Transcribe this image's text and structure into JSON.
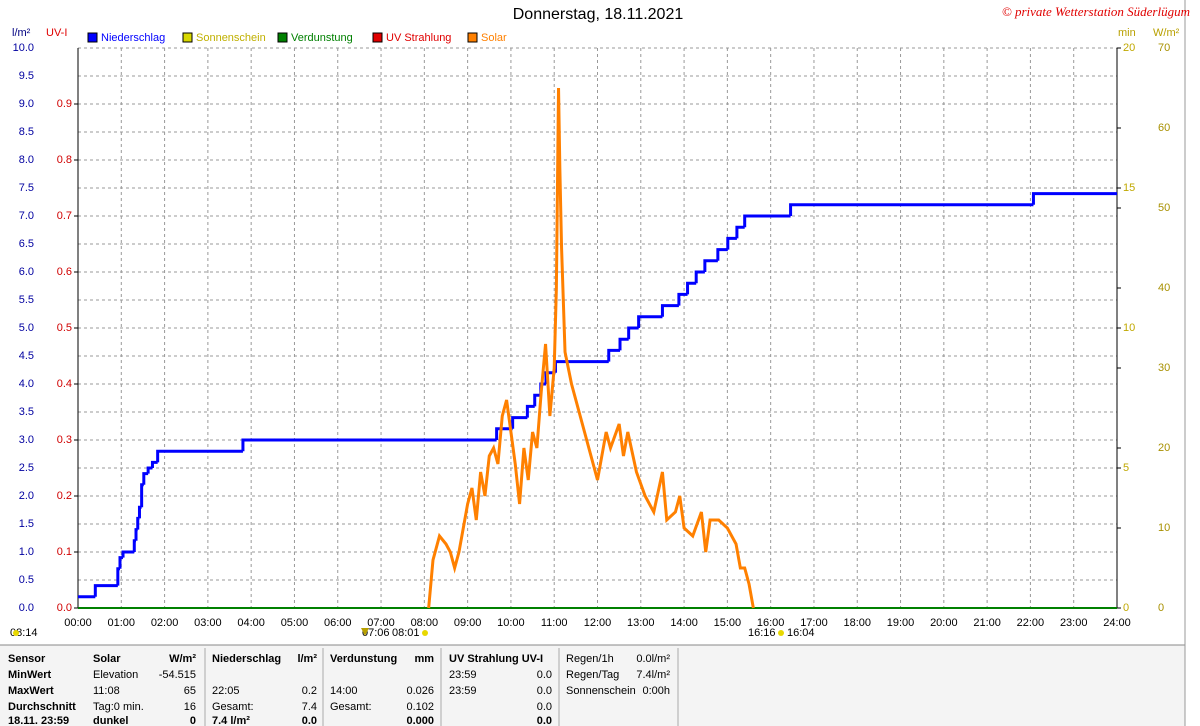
{
  "chart_data": {
    "type": "line",
    "title": "Donnerstag, 18.11.2021",
    "copyright": "© private Wetterstation Süderlügum",
    "ylabel": "l/m²",
    "y3label": "UV-I",
    "y4label": "min",
    "y2label": "W/m²",
    "xlim": [
      0,
      24
    ],
    "xticks": [
      {
        "value": 0,
        "label": "00:00"
      },
      {
        "value": 1,
        "label": "01:00"
      },
      {
        "value": 2,
        "label": "02:00"
      },
      {
        "value": 3,
        "label": "03:00"
      },
      {
        "value": 4,
        "label": "04:00"
      },
      {
        "value": 5,
        "label": "05:00"
      },
      {
        "value": 6,
        "label": "06:00"
      },
      {
        "value": 7,
        "label": "07:00"
      },
      {
        "value": 8,
        "label": "08:00"
      },
      {
        "value": 9,
        "label": "09:00"
      },
      {
        "value": 10,
        "label": "10:00"
      },
      {
        "value": 11,
        "label": "11:00"
      },
      {
        "value": 12,
        "label": "12:00"
      },
      {
        "value": 13,
        "label": "13:00"
      },
      {
        "value": 14,
        "label": "14:00"
      },
      {
        "value": 15,
        "label": "15:00"
      },
      {
        "value": 16,
        "label": "16:00"
      },
      {
        "value": 17,
        "label": "17:00"
      },
      {
        "value": 18,
        "label": "18:00"
      },
      {
        "value": 19,
        "label": "19:00"
      },
      {
        "value": 20,
        "label": "20:00"
      },
      {
        "value": 21,
        "label": "21:00"
      },
      {
        "value": 22,
        "label": "22:00"
      },
      {
        "value": 23,
        "label": "23:00"
      },
      {
        "value": 24,
        "label": "24:00"
      }
    ],
    "ylim": [
      0,
      10
    ],
    "yticks": [
      {
        "value": 0,
        "label": "0.0"
      },
      0.5,
      {
        "value": 1,
        "label": "1.0"
      },
      1.5,
      {
        "value": 2,
        "label": "2.0"
      },
      2.5,
      {
        "value": 3,
        "label": "3.0"
      },
      3.5,
      {
        "value": 4,
        "label": "4.0"
      },
      4.5,
      {
        "value": 5,
        "label": "5.0"
      },
      5.5,
      {
        "value": 6,
        "label": "6.0"
      },
      6.5,
      {
        "value": 7,
        "label": "7.0"
      },
      7.5,
      {
        "value": 8,
        "label": "8.0"
      },
      8.5,
      {
        "value": 9,
        "label": "9.0"
      },
      9.5,
      {
        "value": 10,
        "label": "10.0"
      }
    ],
    "y3lim": [
      0,
      1
    ],
    "y3ticks": [
      {
        "value": 0,
        "label": "0.0"
      },
      0.1,
      0.2,
      0.3,
      0.4,
      0.5,
      0.6,
      0.7,
      0.8,
      0.9
    ],
    "y4lim": [
      0,
      20
    ],
    "y4ticks": [
      0,
      5,
      10,
      15,
      20
    ],
    "y2lim": [
      0,
      70
    ],
    "y2ticks": [
      0,
      10,
      20,
      30,
      40,
      50,
      60,
      70
    ],
    "grid": true,
    "series": [
      {
        "name": "Niederschlag",
        "color": "#0000ff",
        "axis": "y",
        "step": true,
        "x": [
          0,
          0.4,
          0.92,
          0.97,
          1.04,
          1.3,
          1.34,
          1.38,
          1.42,
          1.47,
          1.52,
          1.62,
          1.72,
          1.84,
          3.81,
          9.67,
          10.04,
          10.38,
          10.55,
          10.69,
          10.81,
          11.03,
          12.26,
          12.52,
          12.72,
          12.95,
          13.5,
          13.88,
          14.08,
          14.28,
          14.48,
          14.78,
          15.01,
          15.22,
          15.4,
          16.46,
          22.07,
          24
        ],
        "values": [
          0.2,
          0.4,
          0.7,
          0.9,
          1.0,
          1.2,
          1.4,
          1.6,
          1.8,
          2.2,
          2.4,
          2.5,
          2.6,
          2.8,
          3.0,
          3.2,
          3.4,
          3.6,
          3.8,
          4.0,
          4.2,
          4.4,
          4.6,
          4.8,
          5.0,
          5.2,
          5.4,
          5.6,
          5.8,
          6.0,
          6.2,
          6.4,
          6.6,
          6.8,
          7.0,
          7.2,
          7.4,
          7.4
        ]
      },
      {
        "name": "Sonnenschein",
        "color": "#d8d800",
        "axis": "y4",
        "x": [],
        "values": []
      },
      {
        "name": "Verdunstung",
        "color": "#008000",
        "axis": "y",
        "x": [
          0,
          24
        ],
        "values": [
          0,
          0
        ]
      },
      {
        "name": "UV Strahlung",
        "color": "#e00000",
        "axis": "y3",
        "x": [],
        "values": []
      },
      {
        "name": "Solar",
        "color": "#ff8000",
        "axis": "y2",
        "x": [
          8.1,
          8.2,
          8.35,
          8.5,
          8.6,
          8.7,
          8.8,
          9.0,
          9.1,
          9.2,
          9.3,
          9.4,
          9.5,
          9.6,
          9.7,
          9.8,
          9.9,
          10.0,
          10.1,
          10.2,
          10.3,
          10.4,
          10.5,
          10.6,
          10.7,
          10.8,
          10.9,
          11.0,
          11.05,
          11.1,
          11.13,
          11.17,
          11.25,
          11.4,
          11.5,
          11.7,
          11.9,
          12.0,
          12.2,
          12.3,
          12.5,
          12.6,
          12.7,
          12.9,
          13.1,
          13.3,
          13.5,
          13.6,
          13.8,
          13.9,
          14.0,
          14.2,
          14.4,
          14.5,
          14.6,
          14.8,
          15.0,
          15.2,
          15.3,
          15.4,
          15.5,
          15.6
        ],
        "values": [
          0,
          6,
          9,
          8,
          7,
          5,
          7,
          13,
          15,
          11,
          17,
          14,
          19,
          20,
          18,
          24,
          26,
          22,
          18,
          13,
          20,
          16,
          22,
          20,
          27,
          33,
          24,
          30,
          40,
          65,
          55,
          45,
          32,
          28,
          26,
          22,
          18,
          16,
          22,
          20,
          23,
          19,
          22,
          17,
          14,
          12,
          17,
          11,
          12,
          14,
          10,
          9,
          12,
          7,
          11,
          11,
          10,
          8,
          5,
          5,
          3,
          0
        ]
      }
    ],
    "annotations": [
      "08:14",
      "07:06",
      "08:01",
      "16:16",
      "16:04"
    ]
  },
  "stats": {
    "rows": [
      [
        "Sensor",
        "Solar",
        "W/m²",
        "Niederschlag",
        "l/m²",
        "Verdunstung",
        "mm",
        "UV Strahlung UV-I",
        null,
        "Regen/1h",
        "0.0l/m²"
      ],
      [
        "MinWert",
        "Elevation",
        "-54.515",
        null,
        null,
        null,
        null,
        "23:59",
        "0.0",
        "Regen/Tag",
        "7.4l/m²"
      ],
      [
        "MaxWert",
        "11:08",
        "65",
        "22:05",
        "0.2",
        "14:00",
        "0.026",
        "23:59",
        "0.0",
        "Sonnenschein",
        "0:00h"
      ],
      [
        "Durchschnitt",
        "Tag:0 min.",
        "16",
        "Gesamt:",
        "7.4",
        "Gesamt:",
        "0.102",
        null,
        "0.0",
        null,
        null
      ],
      [
        "18.11. 23:59",
        "dunkel",
        "0",
        "7.4 l/m²",
        "0.0",
        null,
        "0.000",
        null,
        "0.0",
        null,
        null
      ]
    ]
  }
}
